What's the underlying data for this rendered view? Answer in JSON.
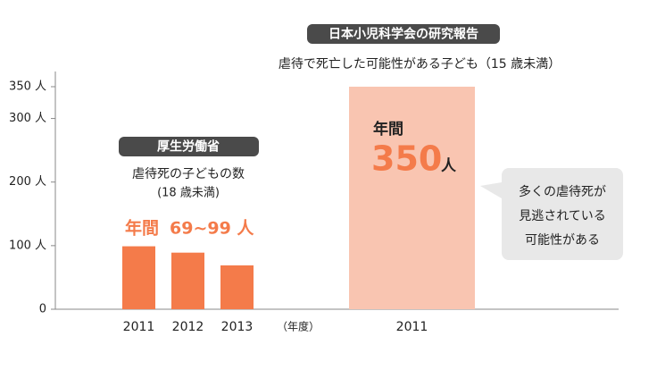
{
  "chart_data": {
    "type": "bar",
    "ylim": [
      0,
      350
    ],
    "yticks": [
      0,
      {
        "value": 100,
        "label": "100 人"
      },
      {
        "value": 200,
        "label": "200 人"
      },
      {
        "value": 300,
        "label": "300 人"
      },
      {
        "value": 350,
        "label": "350 人"
      }
    ],
    "x_unit": "（年度）",
    "groups": [
      {
        "source": "厚生労働省",
        "subtitle": "虐待死の子どもの数",
        "note": "(18 歳未満)",
        "annual_label": "年間",
        "annual_range": "69~99 人",
        "categories": [
          "2011",
          "2012",
          "2013"
        ],
        "values": [
          99,
          89,
          69
        ],
        "color": "#f47b4a"
      },
      {
        "source": "日本小児科学会の研究報告",
        "subtitle": "虐待で死亡した可能性がある子ども（15 歳未満）",
        "annual_label": "年間",
        "unit": "人",
        "categories": [
          "2011"
        ],
        "values": [
          350
        ],
        "color": "#f9c5b1",
        "highlight_color": "#f47b4a"
      }
    ],
    "callout": [
      "多くの虐待死が",
      "見逃されている",
      "可能性がある"
    ]
  }
}
